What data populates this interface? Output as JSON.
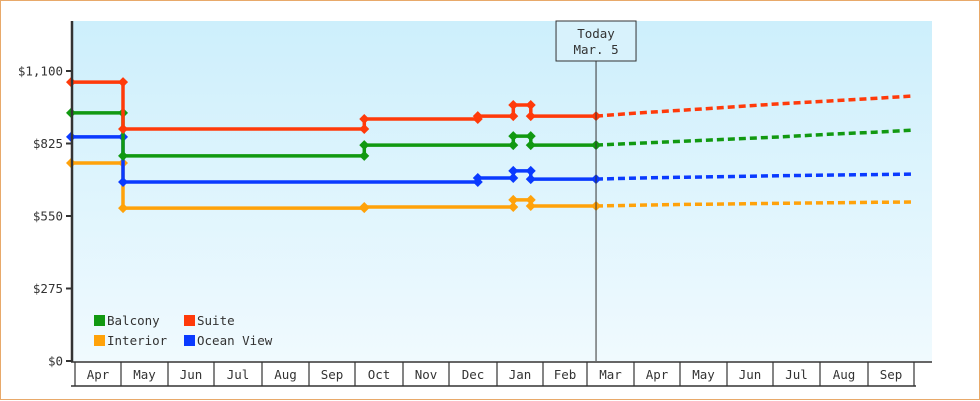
{
  "chart_data": {
    "type": "line",
    "title": "",
    "xlabel": "",
    "ylabel": "",
    "ylim": [
      0,
      1100
    ],
    "y_ticks": [
      {
        "value": 0,
        "label": "$0"
      },
      {
        "value": 275,
        "label": "$275"
      },
      {
        "value": 550,
        "label": "$550"
      },
      {
        "value": 825,
        "label": "$825"
      },
      {
        "value": 1100,
        "label": "$1,100"
      }
    ],
    "x_months": [
      "Apr",
      "May",
      "Jun",
      "Jul",
      "Aug",
      "Sep",
      "Oct",
      "Nov",
      "Dec",
      "Jan",
      "Feb",
      "Mar",
      "Apr",
      "May",
      "Jun",
      "Jul",
      "Aug",
      "Sep"
    ],
    "grid": false,
    "legend_position": "bottom-left inside plot",
    "today_marker": {
      "line1": "Today",
      "line2": "Mar. 5",
      "x_month_index": 11.1
    },
    "series": [
      {
        "name": "Balcony",
        "color": "#119911",
        "historical": [
          [
            0,
            941
          ],
          [
            1.1,
            941
          ],
          [
            1.1,
            778
          ],
          [
            6.2,
            778
          ],
          [
            6.2,
            819
          ],
          [
            9.35,
            819
          ],
          [
            9.35,
            853
          ],
          [
            9.72,
            853
          ],
          [
            9.72,
            819
          ],
          [
            11.1,
            819
          ]
        ],
        "forecast": [
          [
            11.1,
            819
          ],
          [
            12,
            826
          ],
          [
            13,
            834
          ],
          [
            14,
            842
          ],
          [
            15,
            850
          ],
          [
            16,
            860
          ],
          [
            17,
            868
          ],
          [
            17.8,
            876
          ]
        ]
      },
      {
        "name": "Suite",
        "color": "#ff3a0a",
        "historical": [
          [
            0,
            1058
          ],
          [
            1.1,
            1058
          ],
          [
            1.1,
            880
          ],
          [
            6.2,
            880
          ],
          [
            6.2,
            918
          ],
          [
            8.6,
            918
          ],
          [
            8.6,
            929
          ],
          [
            9.35,
            929
          ],
          [
            9.35,
            971
          ],
          [
            9.72,
            971
          ],
          [
            9.72,
            929
          ],
          [
            11.1,
            929
          ]
        ],
        "forecast": [
          [
            11.1,
            929
          ],
          [
            12,
            941
          ],
          [
            13,
            952
          ],
          [
            14,
            964
          ],
          [
            15,
            976
          ],
          [
            16,
            986
          ],
          [
            17,
            996
          ],
          [
            17.8,
            1005
          ]
        ]
      },
      {
        "name": "Interior",
        "color": "#ffa20a",
        "historical": [
          [
            0,
            751
          ],
          [
            1.1,
            751
          ],
          [
            1.1,
            580
          ],
          [
            6.2,
            580
          ],
          [
            6.2,
            584
          ],
          [
            9.35,
            584
          ],
          [
            9.35,
            611
          ],
          [
            9.72,
            611
          ],
          [
            9.72,
            588
          ],
          [
            11.1,
            588
          ]
        ],
        "forecast": [
          [
            11.1,
            588
          ],
          [
            12,
            591
          ],
          [
            13,
            594
          ],
          [
            14,
            596
          ],
          [
            15,
            598
          ],
          [
            16,
            600
          ],
          [
            17,
            602
          ],
          [
            17.8,
            603
          ]
        ]
      },
      {
        "name": "Ocean View",
        "color": "#0a3aff",
        "historical": [
          [
            0,
            850
          ],
          [
            1.1,
            850
          ],
          [
            1.1,
            679
          ],
          [
            8.6,
            679
          ],
          [
            8.6,
            694
          ],
          [
            9.35,
            694
          ],
          [
            9.35,
            721
          ],
          [
            9.72,
            721
          ],
          [
            9.72,
            690
          ],
          [
            11.1,
            690
          ]
        ],
        "forecast": [
          [
            11.1,
            690
          ],
          [
            12,
            694
          ],
          [
            13,
            697
          ],
          [
            14,
            700
          ],
          [
            15,
            703
          ],
          [
            16,
            705
          ],
          [
            17,
            707
          ],
          [
            17.8,
            709
          ]
        ]
      }
    ]
  },
  "style": {
    "frame_border": "#e8a96a",
    "axis_color": "#333333",
    "plot_bg_top": "#cdeffc",
    "plot_bg_bottom": "#f0fafe"
  },
  "legend": [
    {
      "label": "Balcony",
      "color": "#119911"
    },
    {
      "label": "Suite",
      "color": "#ff3a0a"
    },
    {
      "label": "Interior",
      "color": "#ffa20a"
    },
    {
      "label": "Ocean View",
      "color": "#0a3aff"
    }
  ]
}
